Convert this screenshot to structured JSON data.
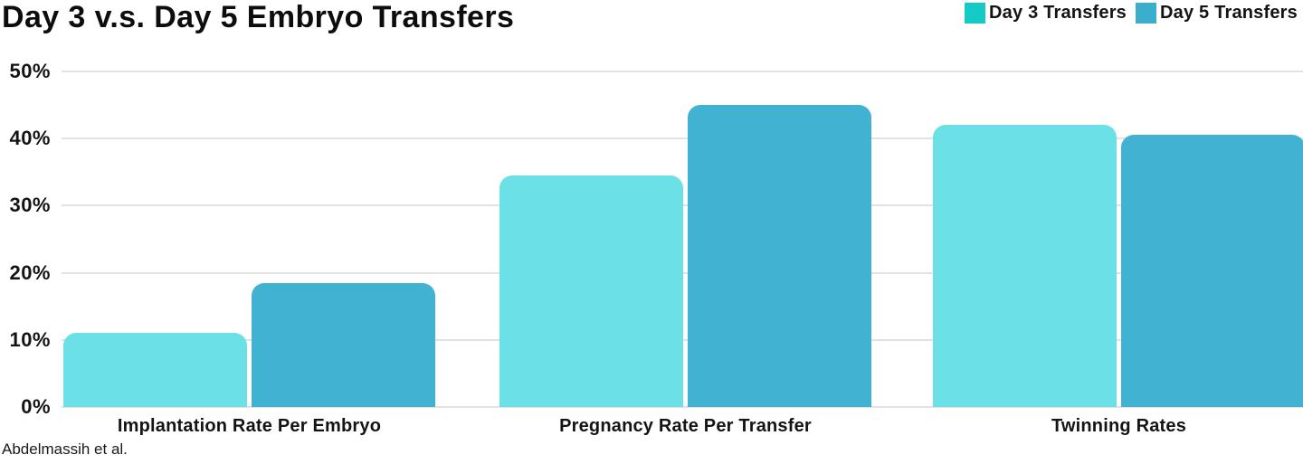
{
  "title": "Day 3 v.s. Day 5 Embryo Transfers",
  "source": "Abdelmassih et al.",
  "legend": {
    "items": [
      {
        "label": "Day 3 Transfers",
        "swatch_color": "#13CBC4"
      },
      {
        "label": "Day 5 Transfers",
        "swatch_color": "#3AAECC"
      }
    ]
  },
  "colors": {
    "day3_bar": "#6BE1E7",
    "day5_bar": "#42B2D2",
    "gridline": "#e2e2e2",
    "text": "#141414",
    "background": "#ffffff"
  },
  "chart_data": {
    "type": "bar",
    "title": "Day 3 v.s. Day 5 Embryo Transfers",
    "categories": [
      "Implantation Rate Per Embryo",
      "Pregnancy Rate Per Transfer",
      "Twinning Rates"
    ],
    "series": [
      {
        "name": "Day 3 Transfers",
        "color": "#6BE1E7",
        "values": [
          11,
          34.5,
          42
        ]
      },
      {
        "name": "Day 5 Transfers",
        "color": "#42B2D2",
        "values": [
          18.5,
          45,
          40.5
        ]
      }
    ],
    "xlabel": "",
    "ylabel": "",
    "ylim": [
      0,
      50
    ],
    "ytick_labels": [
      "0%",
      "10%",
      "20%",
      "30%",
      "40%",
      "50%"
    ],
    "grid": true,
    "legend_position": "top-right",
    "annotation": "Abdelmassih et al."
  }
}
